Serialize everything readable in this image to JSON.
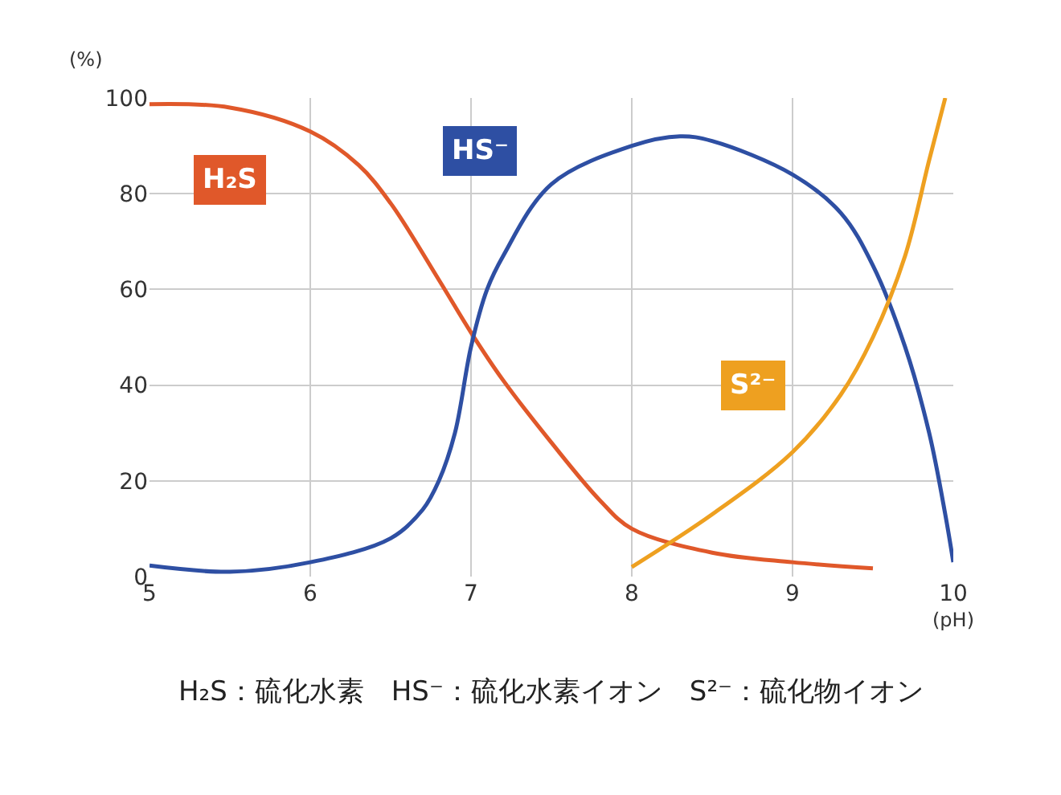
{
  "chart_data": {
    "type": "line",
    "xlabel": "(pH)",
    "ylabel": "(%)",
    "xlim": [
      5,
      10
    ],
    "ylim": [
      0,
      100
    ],
    "xticks": [
      5,
      6,
      7,
      8,
      9,
      10
    ],
    "yticks": [
      0,
      20,
      40,
      60,
      80,
      100
    ],
    "grid": true,
    "legend": false,
    "series": [
      {
        "name": "H₂S",
        "color": "#e0582a",
        "x": [
          5,
          5.5,
          6,
          6.3,
          6.5,
          6.8,
          7,
          7.2,
          7.5,
          7.8,
          8,
          8.5,
          9,
          9.5
        ],
        "values": [
          98.7,
          98,
          93,
          86,
          78,
          62,
          51,
          41,
          28,
          16,
          10,
          5,
          3,
          1.7
        ]
      },
      {
        "name": "HS⁻",
        "color": "#2e4fa3",
        "x": [
          5,
          5.5,
          6,
          6.5,
          6.7,
          6.8,
          6.9,
          7,
          7.1,
          7.2,
          7.5,
          8,
          8.3,
          8.5,
          9,
          9.3,
          9.5,
          9.7,
          9.85,
          9.95,
          10
        ],
        "values": [
          2.3,
          1,
          3,
          8,
          14,
          20,
          30,
          48,
          60,
          67,
          82,
          90,
          92,
          91,
          84,
          76,
          65,
          48,
          30,
          13,
          3
        ]
      },
      {
        "name": "S²⁻",
        "color": "#eea020",
        "x": [
          8,
          8.5,
          9,
          9.3,
          9.5,
          9.7,
          9.85,
          9.95
        ],
        "values": [
          2,
          13,
          26,
          38,
          50,
          67,
          87,
          100
        ]
      }
    ],
    "annotations": [
      "H₂S：硫化水素　HS⁻：硫化水素イオン　S²⁻：硫化物イオン"
    ]
  }
}
